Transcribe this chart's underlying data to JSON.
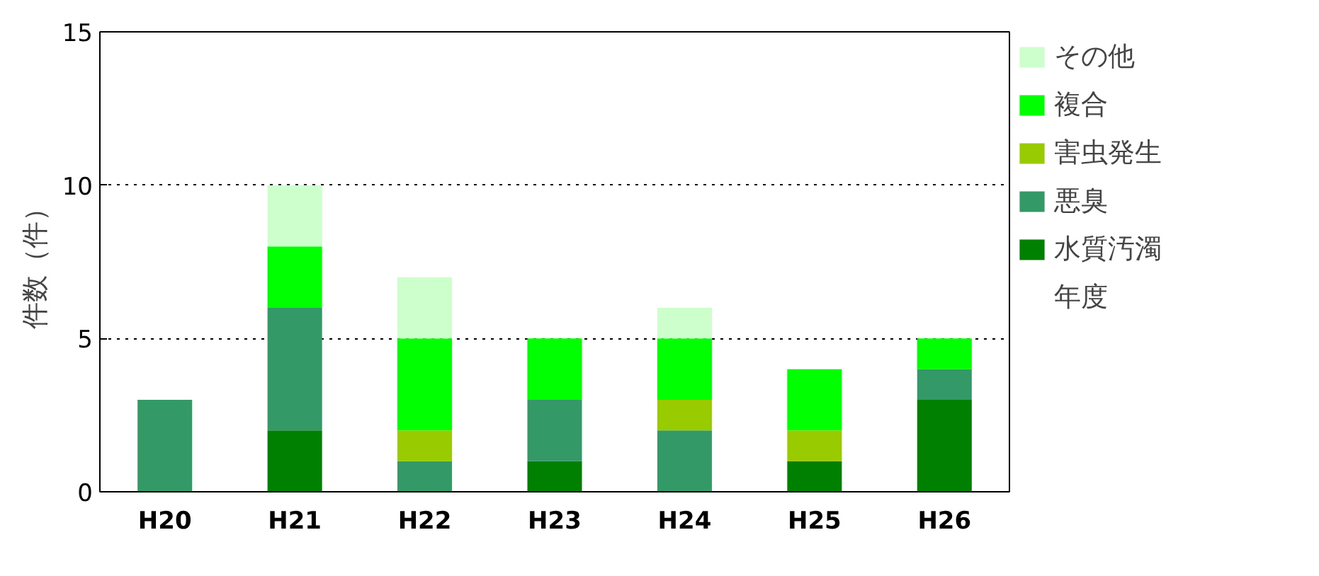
{
  "chart_data": {
    "type": "bar",
    "stacked": true,
    "ylabel": "件数（件）",
    "xlabel": "年度",
    "categories": [
      "H20",
      "H21",
      "H22",
      "H23",
      "H24",
      "H25",
      "H26"
    ],
    "series": [
      {
        "name": "水質汚濁",
        "color": "#008000",
        "values": [
          0,
          2,
          0,
          1,
          0,
          1,
          3
        ]
      },
      {
        "name": "悪臭",
        "color": "#339966",
        "values": [
          3,
          4,
          1,
          2,
          2,
          0,
          1
        ]
      },
      {
        "name": "害虫発生",
        "color": "#99cc00",
        "values": [
          0,
          0,
          1,
          0,
          1,
          1,
          0
        ]
      },
      {
        "name": "複合",
        "color": "#00ff00",
        "values": [
          0,
          2,
          3,
          2,
          2,
          2,
          1
        ]
      },
      {
        "name": "その他",
        "color": "#ccffcc",
        "values": [
          0,
          2,
          2,
          0,
          1,
          0,
          0
        ]
      }
    ],
    "ylim": [
      0,
      15
    ],
    "yticks": [
      0,
      5,
      10,
      15
    ],
    "grid": "y",
    "legend": "right"
  }
}
